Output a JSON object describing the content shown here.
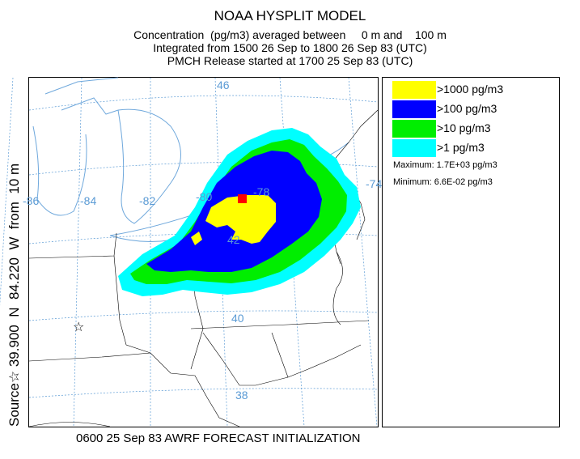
{
  "header": {
    "title": "NOAA HYSPLIT MODEL",
    "concentration_line": "Concentration  (pg/m3) averaged between     0 m and    100 m",
    "integration_line": "Integrated from 1500 26 Sep to 1800 26 Sep 83 (UTC)",
    "release_line": "PMCH Release started at 1700 25 Sep 83 (UTC)"
  },
  "source_label": "Source☆ 39.900  N  84.220  W  from  10 m",
  "legend": {
    "items": [
      {
        "label": ">1000 pg/m3",
        "color": "#ffff00"
      },
      {
        "label": ">100 pg/m3",
        "color": "#0000ff"
      },
      {
        "label": ">10 pg/m3",
        "color": "#00ee00"
      },
      {
        "label": ">1 pg/m3",
        "color": "#00ffff"
      }
    ],
    "maximum": "Maximum:  1.7E+03 pg/m3",
    "minimum": "Minimum:  6.6E-02 pg/m3"
  },
  "map": {
    "grid_labels": {
      "lat_46": "46",
      "lat_42": "42",
      "lat_40": "40",
      "lat_38": "38",
      "lon_86": "-86",
      "lon_84": "-84",
      "lon_82": "-82",
      "lon_80": "-80",
      "lon_78": "-78",
      "lon_74": "-74"
    },
    "source_symbol": "☆",
    "grid_color": "#5b9bd5",
    "boundary_color": "#000000",
    "water_color": "#6fa8dc",
    "max_marker_color": "#ff0000"
  },
  "footer": "0600 25 Sep 83 AWRF FORECAST INITIALIZATION"
}
